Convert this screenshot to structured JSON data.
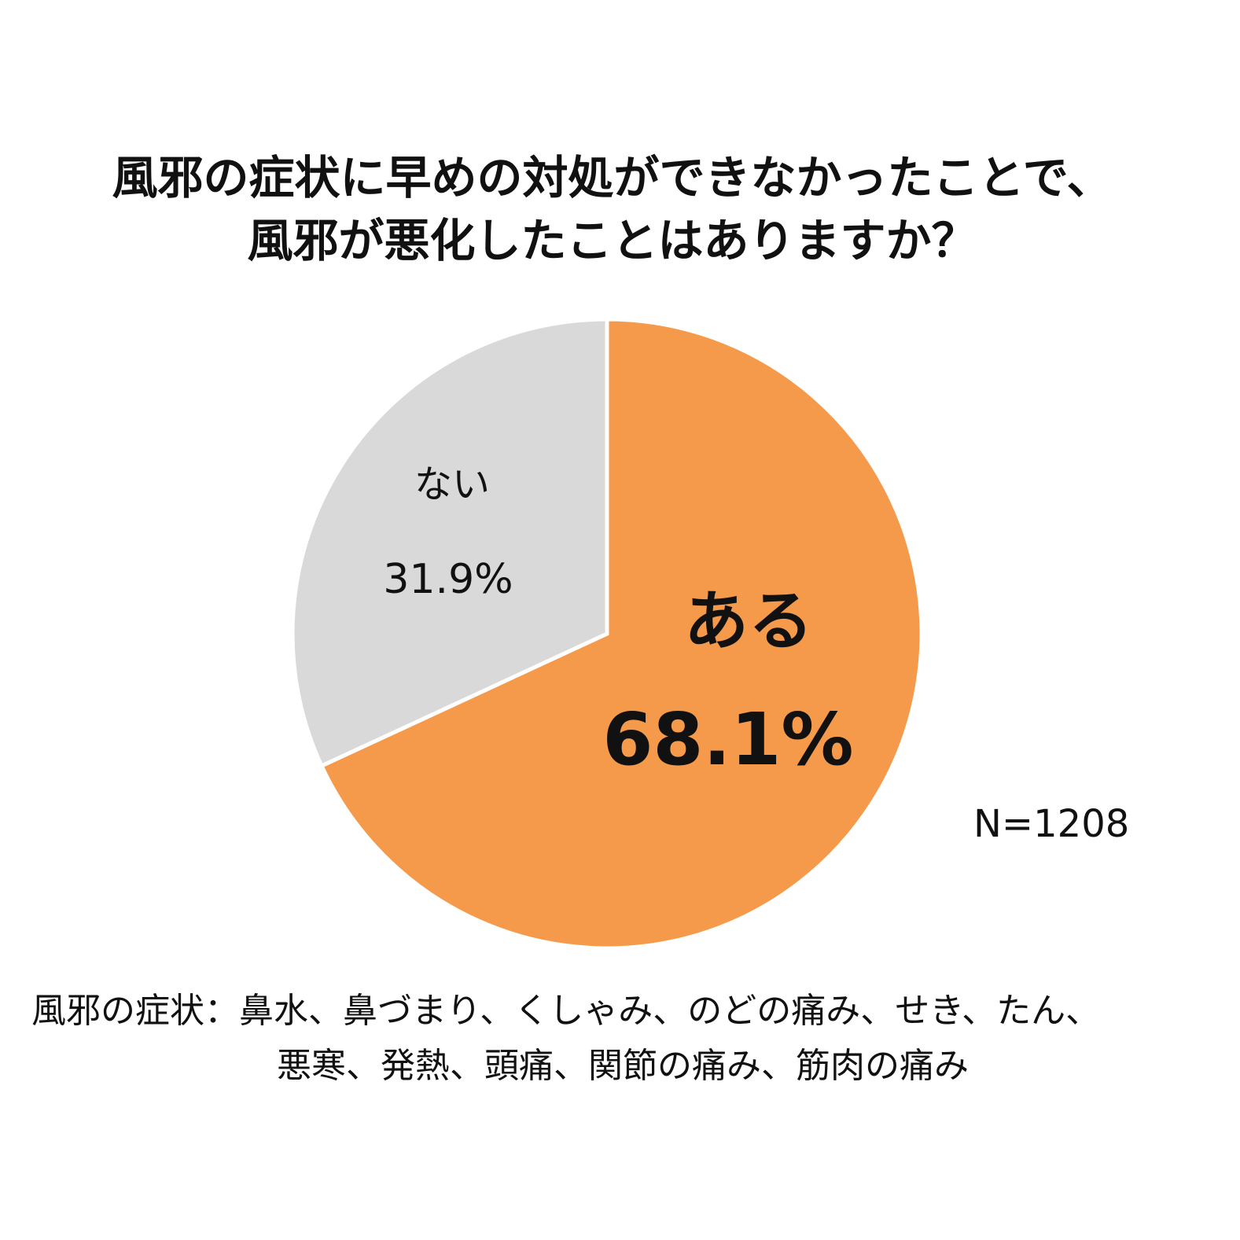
{
  "chart_data": {
    "type": "pie",
    "title": [
      "風邪の症状に早めの対処ができなかったことで、",
      "風邪が悪化したことはありますか？"
    ],
    "slices": [
      {
        "label": "ある",
        "value": 68.1,
        "value_label": "68.1%",
        "color": "#F59A4B"
      },
      {
        "label": "ない",
        "value": 31.9,
        "value_label": "31.9%",
        "color": "#D9D9D9"
      }
    ],
    "sample_size": "N=1208",
    "notes": [
      "風邪の症状：鼻水、鼻づまり、くしゃみ、のどの痛み、せき、たん、",
      "悪寒、発熱、頭痛、関節の痛み、筋肉の痛み"
    ]
  }
}
